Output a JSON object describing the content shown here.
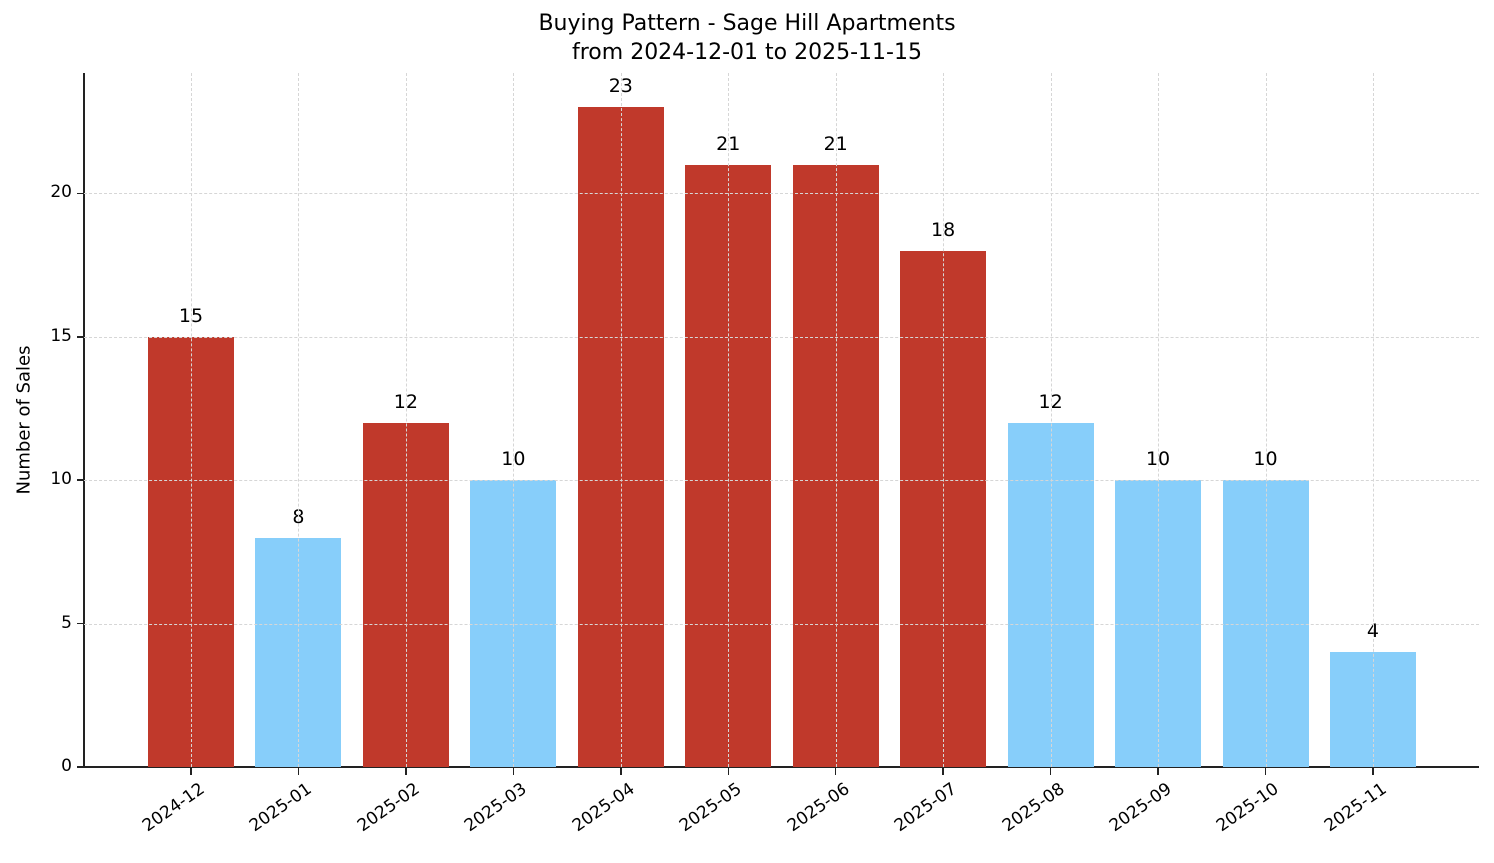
{
  "chart_data": {
    "type": "bar",
    "title": "Buying Pattern - Sage Hill Apartments",
    "subtitle": "from 2024-12-01 to 2025-11-15",
    "xlabel": "",
    "ylabel": "Number of Sales",
    "categories": [
      "2024-12",
      "2025-01",
      "2025-02",
      "2025-03",
      "2025-04",
      "2025-05",
      "2025-06",
      "2025-07",
      "2025-08",
      "2025-09",
      "2025-10",
      "2025-11"
    ],
    "values": [
      15,
      8,
      12,
      10,
      23,
      21,
      21,
      18,
      12,
      10,
      10,
      4
    ],
    "bar_colors": [
      "#C0392B",
      "#87CEFA",
      "#C0392B",
      "#87CEFA",
      "#C0392B",
      "#C0392B",
      "#C0392B",
      "#C0392B",
      "#87CEFA",
      "#87CEFA",
      "#87CEFA",
      "#87CEFA"
    ],
    "data_labels": [
      "15",
      "8",
      "12",
      "10",
      "23",
      "21",
      "21",
      "18",
      "12",
      "10",
      "10",
      "4"
    ],
    "yticks": [
      0,
      5,
      10,
      15,
      20
    ],
    "ytick_labels": [
      "0",
      "5",
      "10",
      "15",
      "20"
    ],
    "ylim": [
      0,
      24.2
    ],
    "grid": true,
    "legend": null,
    "colors": {
      "high": "#C0392B",
      "low": "#87CEFA"
    }
  }
}
